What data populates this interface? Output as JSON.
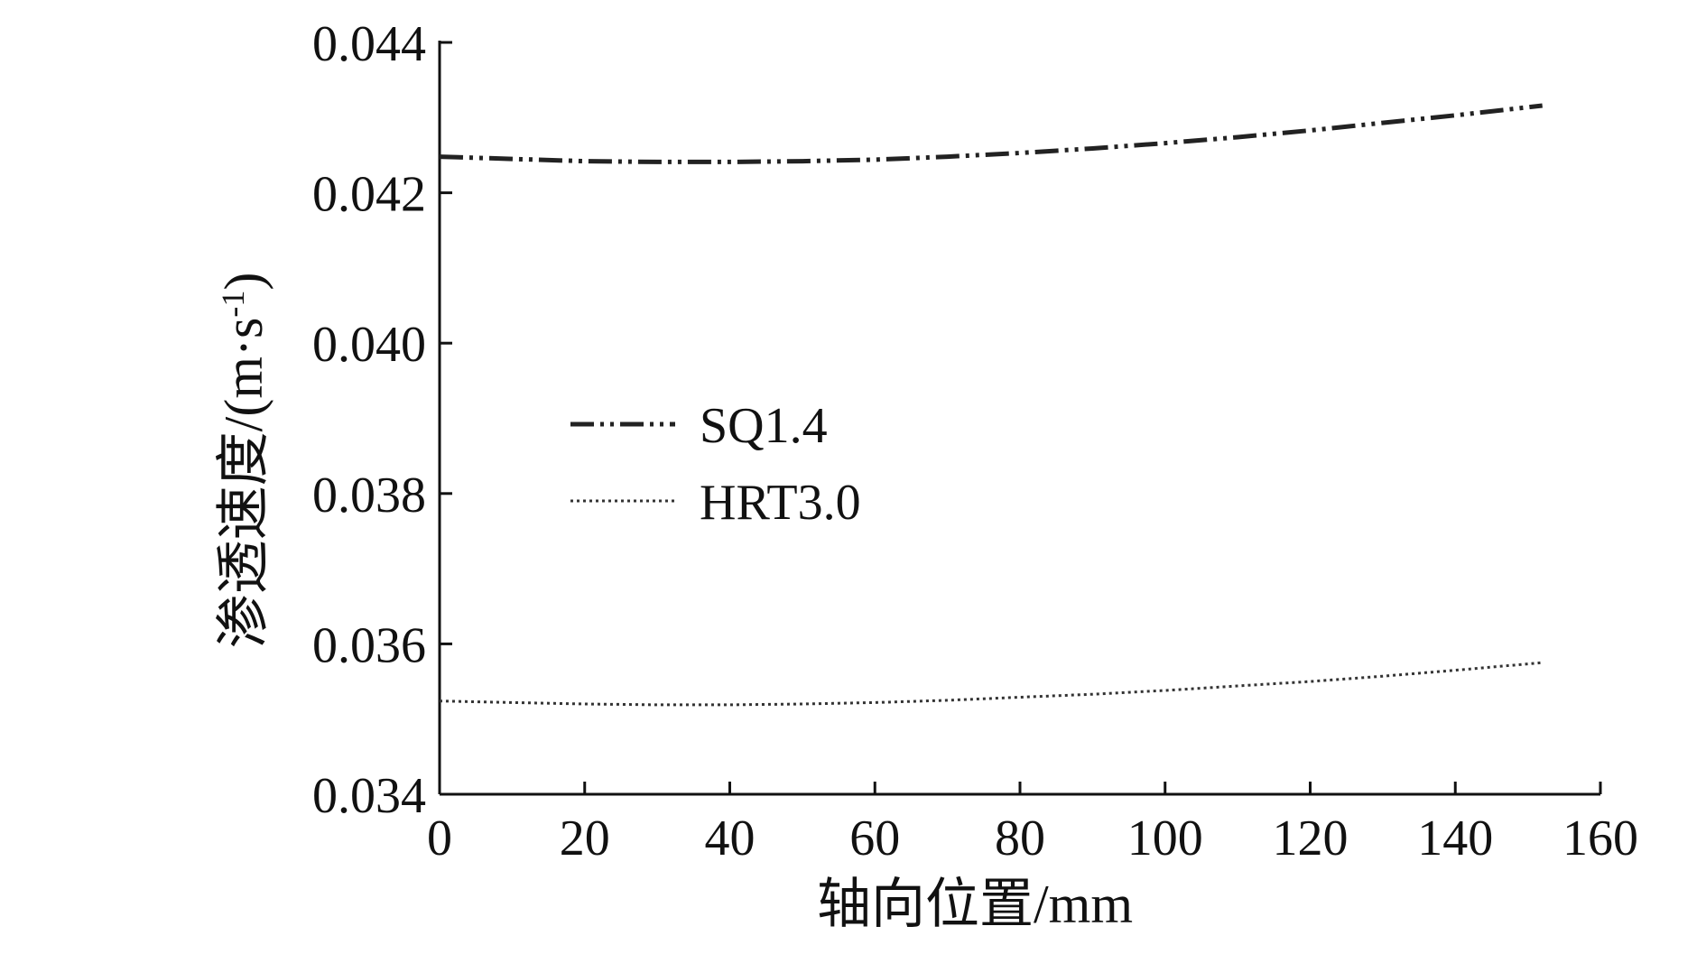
{
  "chart_data": {
    "type": "line",
    "title": "",
    "xlabel": "轴向位置/mm",
    "ylabel": "渗透速度/(m·s",
    "ylabel_sup": "-1",
    "ylabel_close": ")",
    "xlim": [
      0,
      160
    ],
    "ylim": [
      0.034,
      0.044
    ],
    "xticks": [
      0,
      20,
      40,
      60,
      80,
      100,
      120,
      140,
      160
    ],
    "xtick_labels": [
      "0",
      "20",
      "40",
      "60",
      "80",
      "100",
      "120",
      "140",
      "160"
    ],
    "yticks": [
      0.034,
      0.036,
      0.038,
      0.04,
      0.042,
      0.044
    ],
    "ytick_labels": [
      "0.034",
      "0.036",
      "0.038",
      "0.040",
      "0.042",
      "0.044"
    ],
    "grid": false,
    "legend_position": "center-left",
    "series": [
      {
        "name": "SQ1.4",
        "style": "dash-dot-dot",
        "color": "#222222",
        "x": [
          0,
          10,
          20,
          30,
          40,
          50,
          60,
          70,
          80,
          90,
          100,
          110,
          120,
          130,
          140,
          152
        ],
        "y": [
          0.04248,
          0.04245,
          0.04242,
          0.04241,
          0.04241,
          0.04242,
          0.04244,
          0.04248,
          0.04253,
          0.04259,
          0.04266,
          0.04274,
          0.04283,
          0.04293,
          0.04303,
          0.04316
        ]
      },
      {
        "name": "HRT3.0",
        "style": "dotted",
        "color": "#333333",
        "x": [
          0,
          10,
          20,
          30,
          40,
          50,
          60,
          70,
          80,
          90,
          100,
          110,
          120,
          130,
          140,
          152
        ],
        "y": [
          0.03524,
          0.03522,
          0.0352,
          0.03519,
          0.03519,
          0.0352,
          0.03522,
          0.03525,
          0.03529,
          0.03533,
          0.03538,
          0.03544,
          0.0355,
          0.03557,
          0.03565,
          0.03575
        ]
      }
    ]
  }
}
